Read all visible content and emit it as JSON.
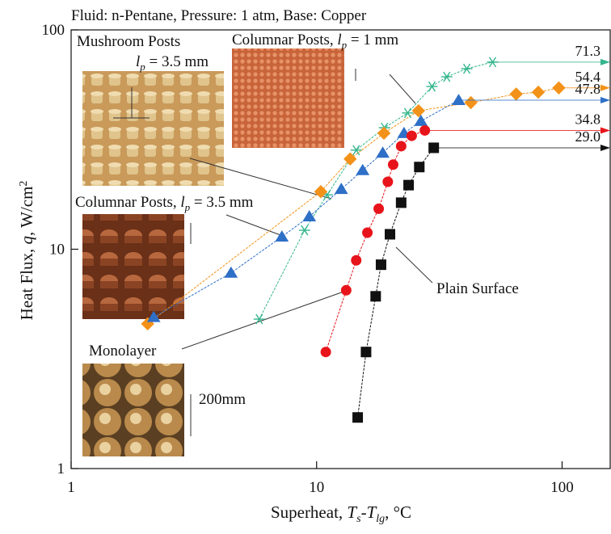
{
  "chart_data": {
    "type": "line",
    "title": "Fluid: n-Pentane, Pressure: 1 atm, Base: Copper",
    "x_label": [
      "Superheat, ",
      "T",
      "s",
      "-",
      "T",
      "lg",
      ", °C"
    ],
    "y_label": [
      "Heat Flux, ",
      "q",
      ", W/cm",
      "2"
    ],
    "log_x": true,
    "log_y": true,
    "xlim": [
      1,
      157
    ],
    "ylim": [
      1,
      100
    ],
    "xticks": [
      1,
      10,
      100
    ],
    "yticks": [
      1,
      10,
      100
    ],
    "series": [
      {
        "color": "#35b58d",
        "marker": "asterisk",
        "x": [
          5.84,
          8.93,
          11.04,
          14.5,
          18.9,
          23.5,
          29.5,
          33.9,
          40.9,
          52.1
        ],
        "values": [
          4.8,
          12.2,
          17.7,
          28.3,
          35.8,
          41.8,
          55.2,
          61.1,
          66.5,
          71.3
        ],
        "end_value": 71.3
      },
      {
        "color": "#f39219",
        "marker": "diamond",
        "x": [
          2.05,
          10.4,
          13.7,
          18.8,
          26,
          42.5,
          65,
          80,
          97
        ],
        "values": [
          4.57,
          18.3,
          25.8,
          33.8,
          42.8,
          46.6,
          51,
          52,
          54.4
        ],
        "end_value": 54.4
      },
      {
        "color": "#2e6fc7",
        "marker": "triangle",
        "x": [
          2.17,
          4.48,
          7.22,
          9.34,
          12.6,
          15.4,
          18.6,
          22.7,
          26.6,
          37.9
        ],
        "values": [
          4.9,
          7.8,
          11.4,
          14.1,
          18.8,
          22.9,
          27.5,
          33.8,
          38.4,
          47.8
        ],
        "end_value": 47.8
      },
      {
        "color": "#e8141b",
        "marker": "circle",
        "x": [
          10.9,
          13.2,
          14.5,
          16.1,
          17.9,
          19.5,
          20.5,
          22.1,
          24.4,
          27.6
        ],
        "values": [
          3.4,
          6.5,
          8.9,
          11.9,
          15.3,
          20.3,
          24.3,
          29.5,
          32.9,
          34.8
        ],
        "end_value": 34.8
      },
      {
        "color": "#111111",
        "marker": "square",
        "x": [
          14.7,
          15.9,
          17.4,
          18.3,
          19.9,
          22.1,
          23.7,
          26.2,
          30
        ],
        "values": [
          1.71,
          3.4,
          6.1,
          8.5,
          11.7,
          16.3,
          19.6,
          23.7,
          29
        ],
        "end_value": {
          "value": 29,
          "label": "29.0"
        }
      }
    ],
    "annotations": [
      {
        "parts": [
          "Mushroom Posts"
        ]
      },
      {
        "parts": [
          "l",
          "p",
          " = 3.5 mm"
        ]
      },
      {
        "parts": [
          "Columnar Posts, ",
          "l",
          "p",
          " = 1 mm"
        ]
      },
      {
        "parts": [
          "Columnar Posts, ",
          "l",
          "p",
          " = 3.5 mm"
        ]
      },
      {
        "parts": [
          "Monolayer"
        ]
      },
      {
        "parts": [
          "200mm"
        ]
      },
      {
        "parts": [
          "Plain Surface"
        ]
      }
    ]
  }
}
